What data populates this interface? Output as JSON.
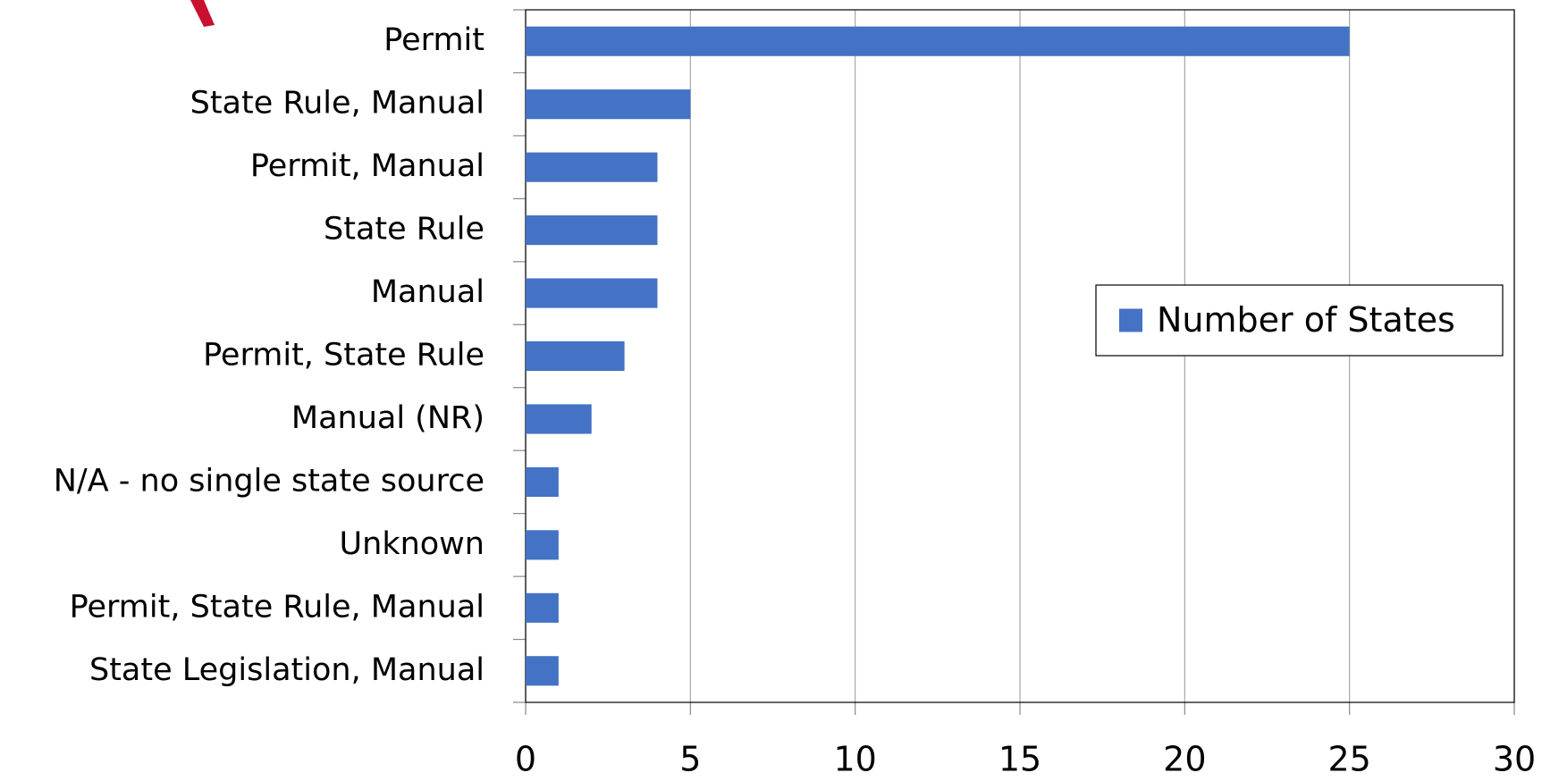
{
  "chart_data": {
    "type": "bar",
    "orientation": "horizontal",
    "categories": [
      "Permit",
      "State Rule, Manual",
      "Permit, Manual",
      "State Rule",
      "Manual",
      "Permit, State Rule",
      "Manual (NR)",
      "N/A - no single state source",
      "Unknown",
      "Permit, State Rule, Manual",
      "State Legislation, Manual"
    ],
    "series": [
      {
        "name": "Number of States",
        "color": "#4472c4",
        "values": [
          25,
          5,
          4,
          4,
          4,
          3,
          2,
          1,
          1,
          1,
          1
        ]
      }
    ],
    "xlim": [
      0,
      30
    ],
    "xticks": [
      0,
      5,
      10,
      15,
      20,
      25,
      30
    ],
    "grid": true,
    "legend": "right"
  }
}
